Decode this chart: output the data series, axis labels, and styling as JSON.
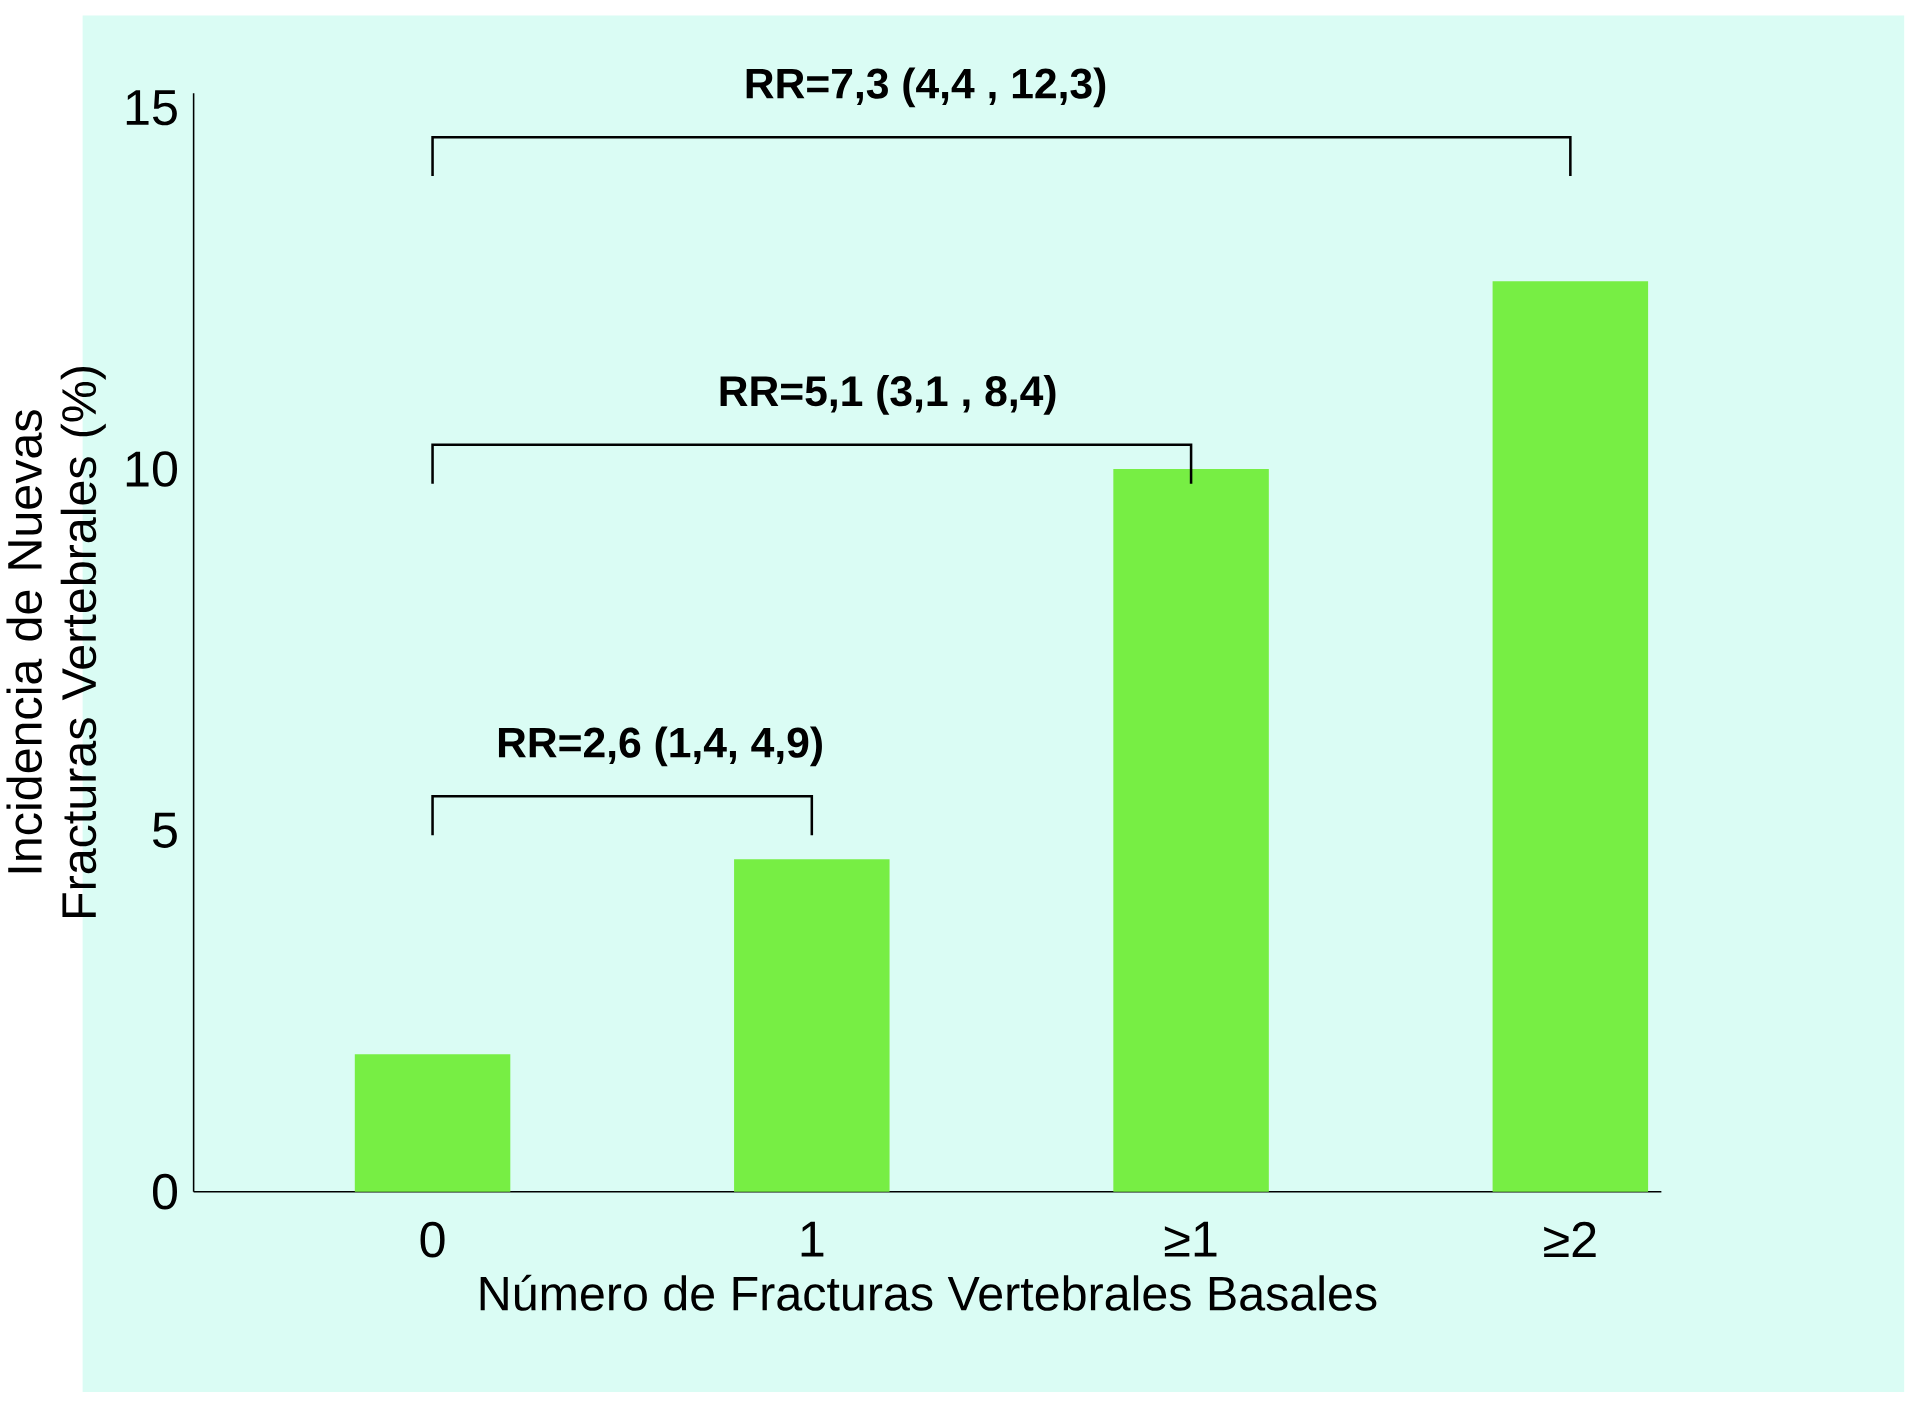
{
  "chart_data": {
    "type": "bar",
    "xlabel": "Número de Fracturas Vertebrales Basales",
    "ylabel": "Incidencia de Nuevas Fracturas Vertebrales (%)",
    "categories": [
      "0",
      "1",
      "≥1",
      "≥2"
    ],
    "values": [
      1.9,
      4.6,
      10.0,
      12.6
    ],
    "color": "#77ee44",
    "ylim": [
      0,
      15.2
    ],
    "yticks": [
      0,
      5,
      10,
      15
    ],
    "annotations": [
      "RR=7,3 (4,4 , 12,3)",
      "RR=5,1 (3,1 , 8,4)",
      "RR=2,6 (1,4,  4,9)"
    ]
  }
}
